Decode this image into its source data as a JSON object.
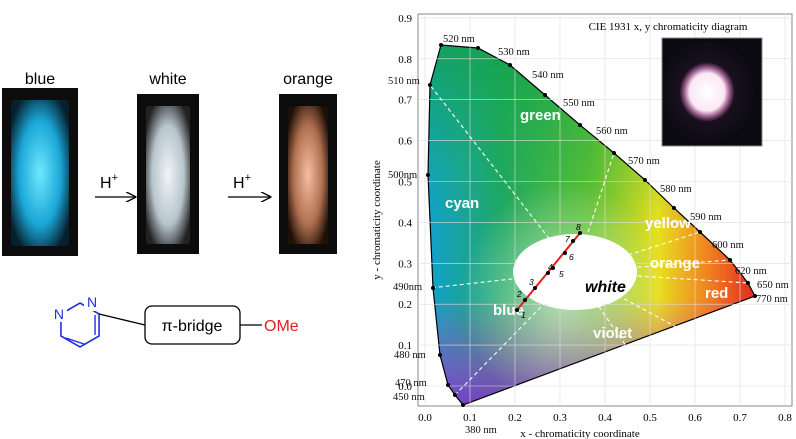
{
  "photos": [
    {
      "label": "blue"
    },
    {
      "label": "white"
    },
    {
      "label": "orange"
    }
  ],
  "arrows": [
    {
      "label": "H",
      "sup": "+"
    },
    {
      "label": "H",
      "sup": "+"
    }
  ],
  "structure": {
    "ring_atoms": [
      "N",
      "N"
    ],
    "bridge": "π-bridge",
    "group": "OMe"
  },
  "cie": {
    "title": "CIE 1931 x, y chromaticity diagram",
    "x_label": "x - chromaticity coordinate",
    "y_label": "y - chromaticity coordinate",
    "x_ticks": [
      "0.0",
      "0.1",
      "0.2",
      "0.3",
      "0.4",
      "0.5",
      "0.6",
      "0.7",
      "0.8"
    ],
    "y_ticks": [
      "0.0",
      "0.1",
      "0.2",
      "0.3",
      "0.4",
      "0.5",
      "0.6",
      "0.7",
      "0.8",
      "0.9"
    ],
    "wavelengths": [
      "520 nm",
      "530 nm",
      "540 nm",
      "550 nm",
      "560 nm",
      "570 nm",
      "580 nm",
      "590 nm",
      "600 nm",
      "620 nm",
      "650 nm",
      "770 nm",
      "510 nm",
      "500nm",
      "490nm",
      "480 nm",
      "470 nm",
      "450 nm",
      "380 nm"
    ],
    "regions": [
      "green",
      "cyan",
      "yellow",
      "orange",
      "red",
      "blue",
      "violet",
      "white"
    ],
    "points": [
      "1",
      "2",
      "3",
      "4",
      "5",
      "6",
      "7",
      "8"
    ]
  }
}
